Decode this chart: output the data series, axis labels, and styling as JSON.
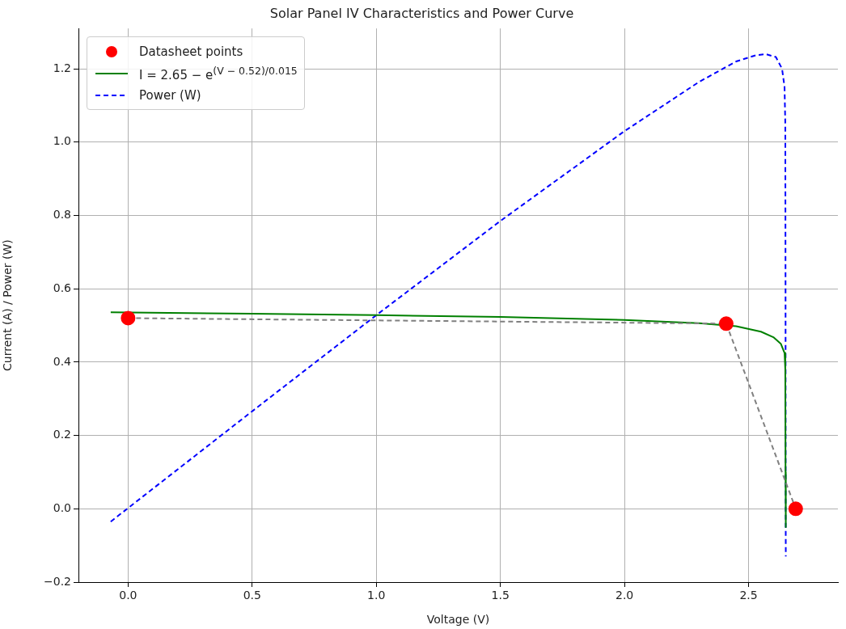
{
  "chart_data": {
    "type": "line",
    "title": "Solar Panel IV Characteristics and Power Curve",
    "xlabel": "Voltage (V)",
    "ylabel": "Current (A) / Power (W)",
    "xlim": [
      -0.2,
      2.86
    ],
    "ylim": [
      -0.2,
      1.31
    ],
    "xticks": [
      {
        "value": 0,
        "label": "0.0"
      },
      {
        "value": 0.5,
        "label": "0.5"
      },
      {
        "value": 1,
        "label": "1.0"
      },
      {
        "value": 1.5,
        "label": "1.5"
      },
      {
        "value": 2,
        "label": "2.0"
      },
      {
        "value": 2.5,
        "label": "2.5"
      }
    ],
    "yticks": [
      {
        "value": -0.2,
        "label": "−0.2"
      },
      {
        "value": 0,
        "label": "0.0"
      },
      {
        "value": 0.2,
        "label": "0.2"
      },
      {
        "value": 0.4,
        "label": "0.4"
      },
      {
        "value": 0.6,
        "label": "0.6"
      },
      {
        "value": 0.8,
        "label": "0.8"
      },
      {
        "value": 1,
        "label": "1.0"
      },
      {
        "value": 1.2,
        "label": "1.2"
      }
    ],
    "grid": true,
    "legend": "top left",
    "series": [
      {
        "color": "#808080",
        "line_style": "dashed",
        "marker": "none",
        "x": [
          0,
          2.41,
          2.69
        ],
        "values": [
          0.52,
          0.505,
          0
        ]
      },
      {
        "type": "scatter",
        "name": "Datasheet points",
        "color": "#ff0000",
        "marker": "circle",
        "x": [
          0,
          2.41,
          2.69
        ],
        "values": [
          0.52,
          0.505,
          0
        ]
      },
      {
        "name": "I = 2.65 − e$^{(V − 0.52)/0.015}$",
        "color": "#008000",
        "line_style": "solid",
        "marker": "none",
        "x": [
          -0.07,
          0.5,
          1.0,
          1.5,
          2.0,
          2.3,
          2.45,
          2.55,
          2.6,
          2.63,
          2.645,
          2.648,
          2.649,
          2.65
        ],
        "values": [
          0.536,
          0.532,
          0.528,
          0.523,
          0.515,
          0.506,
          0.498,
          0.483,
          0.468,
          0.45,
          0.425,
          0.38,
          0.1,
          -0.05
        ]
      },
      {
        "name": "Power (W)",
        "color": "#0000ff",
        "line_style": "dashed",
        "marker": "none",
        "x": [
          -0.07,
          0.5,
          1.0,
          1.5,
          2.0,
          2.3,
          2.45,
          2.53,
          2.57,
          2.61,
          2.635,
          2.645,
          2.648,
          2.649,
          2.6495,
          2.65
        ],
        "values": [
          -0.035,
          0.266,
          0.528,
          0.785,
          1.03,
          1.164,
          1.22,
          1.237,
          1.24,
          1.232,
          1.2,
          1.15,
          1.05,
          0.6,
          0,
          -0.13
        ]
      }
    ]
  }
}
